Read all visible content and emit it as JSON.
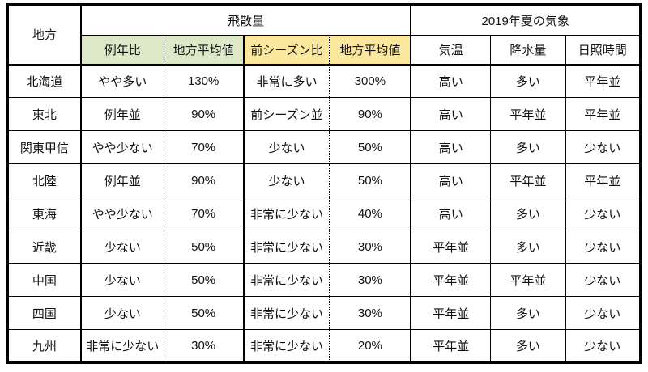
{
  "chart_data": {
    "type": "table",
    "column_groups": [
      {
        "label": "飛散量",
        "span": 4
      },
      {
        "label": "2019年夏の気象",
        "span": 3
      }
    ],
    "columns": [
      "地方",
      "例年比",
      "地方平均値",
      "前シーズン比",
      "地方平均値",
      "気温",
      "降水量",
      "日照時間"
    ],
    "rows": [
      [
        "北海道",
        "やや多い",
        "130%",
        "非常に多い",
        "300%",
        "高い",
        "多い",
        "平年並"
      ],
      [
        "東北",
        "例年並",
        "90%",
        "前シーズン並",
        "90%",
        "高い",
        "平年並",
        "平年並"
      ],
      [
        "関東甲信",
        "やや少ない",
        "70%",
        "少ない",
        "50%",
        "高い",
        "多い",
        "少ない"
      ],
      [
        "北陸",
        "例年並",
        "90%",
        "少ない",
        "50%",
        "高い",
        "平年並",
        "平年並"
      ],
      [
        "東海",
        "やや少ない",
        "70%",
        "非常に少ない",
        "40%",
        "高い",
        "多い",
        "少ない"
      ],
      [
        "近畿",
        "少ない",
        "50%",
        "非常に少ない",
        "30%",
        "平年並",
        "多い",
        "少ない"
      ],
      [
        "中国",
        "少ない",
        "50%",
        "非常に少ない",
        "30%",
        "平年並",
        "平年並",
        "少ない"
      ],
      [
        "四国",
        "少ない",
        "50%",
        "非常に少ない",
        "30%",
        "平年並",
        "多い",
        "少ない"
      ],
      [
        "九州",
        "非常に少ない",
        "30%",
        "非常に少ない",
        "20%",
        "平年並",
        "多い",
        "少ない"
      ]
    ]
  },
  "styles": {
    "border": "#000000",
    "sub_header_colors": [
      "#dce8c8",
      "#dce8c8",
      "#fbe89e",
      "#fbe89e",
      "#ffffff",
      "#ffffff",
      "#ffffff"
    ]
  }
}
